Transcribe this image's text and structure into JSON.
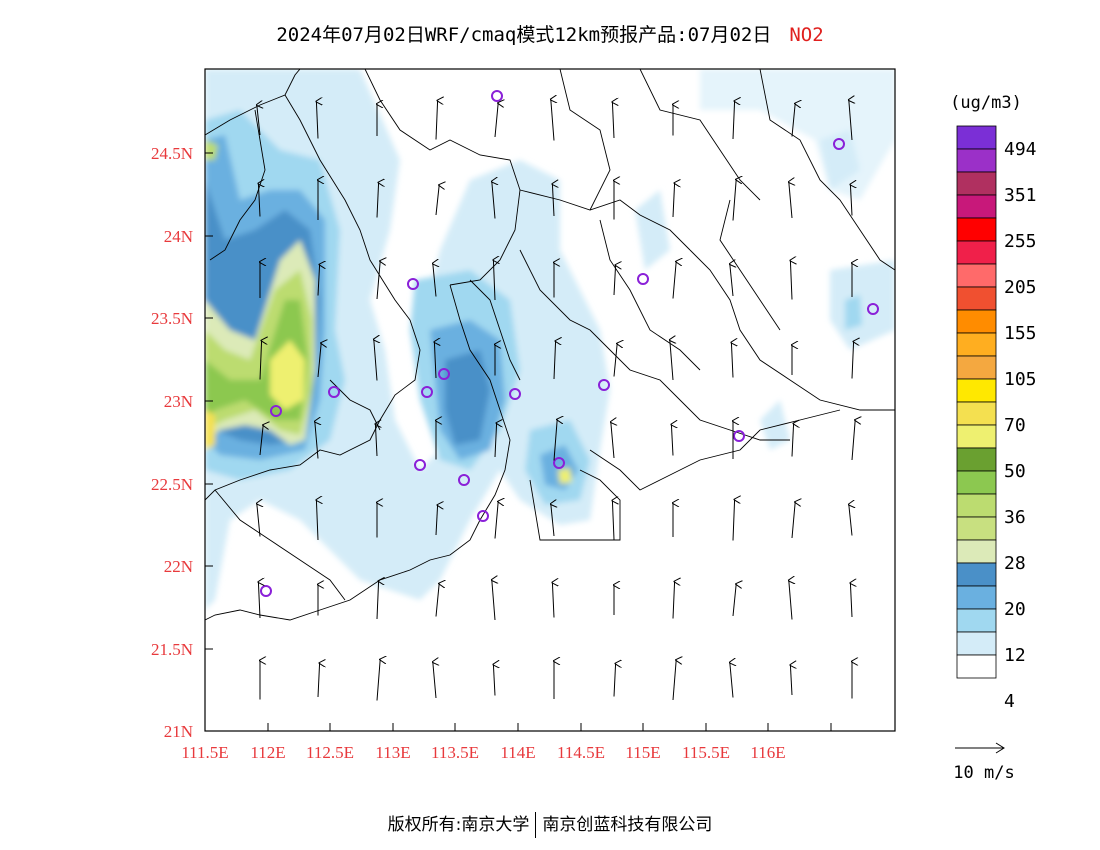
{
  "header": {
    "title": "2024年07月02日WRF/cmaq模式12km预报产品:07月02日",
    "pollutant": "NO2"
  },
  "axes": {
    "lat_labels": [
      "24.5N",
      "24N",
      "23.5N",
      "23N",
      "22.5N",
      "22N",
      "21.5N",
      "21N"
    ],
    "lon_labels": [
      "111.5E",
      "112E",
      "112.5E",
      "113E",
      "113.5E",
      "114E",
      "114.5E",
      "115E",
      "115.5E",
      "116E"
    ]
  },
  "legend": {
    "unit": "(ug/m3)",
    "labels": [
      "494",
      "351",
      "255",
      "205",
      "155",
      "105",
      "70",
      "50",
      "36",
      "28",
      "20",
      "12",
      "4"
    ],
    "colors": [
      "#7b2fd6",
      "#9b30c8",
      "#b03060",
      "#c8187a",
      "#ff0000",
      "#f0204a",
      "#ff6a6a",
      "#f05030",
      "#ff8c00",
      "#ffae20",
      "#f4a840",
      "#ffe800",
      "#f4e050",
      "#eef070",
      "#6aa030",
      "#8cc850",
      "#bcdc70",
      "#c8e080",
      "#dceab8",
      "#4a90c8",
      "#6ab0e0",
      "#a0d8f0",
      "#d4ecf8",
      "#ffffff"
    ]
  },
  "wind_scale": {
    "label": "10 m/s"
  },
  "footer": {
    "left": "版权所有:南京大学",
    "right": "南京创蓝科技有限公司"
  }
}
